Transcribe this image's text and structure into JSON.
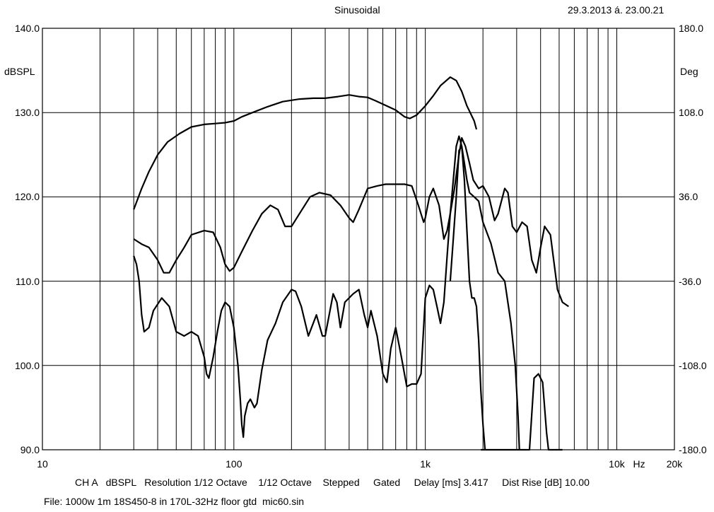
{
  "header": {
    "title": "Sinusoidal",
    "timestamp": "29.3.2013 á. 23.00.21"
  },
  "footer": {
    "settings": "CH A   dBSPL   Resolution 1/12 Octave    1/12 Octave    Stepped     Gated     Delay [ms] 3.417     Dist Rise [dB] 10.00",
    "file": "File: 1000w 1m 18S450-8 in 170L-32Hz floor gtd  mic60.sin"
  },
  "chart_data": {
    "type": "line",
    "title": "Sinusoidal",
    "xlabel": "Hz",
    "ylabel": "dBSPL",
    "y2label": "Deg",
    "xscale": "log",
    "xlim": [
      10,
      20000
    ],
    "ylim": [
      90,
      140
    ],
    "y2lim": [
      -180,
      180
    ],
    "grid": true,
    "x_ticks": [
      {
        "value": 10,
        "label": "10"
      },
      {
        "value": 100,
        "label": "100"
      },
      {
        "value": 1000,
        "label": "1k"
      },
      {
        "value": 10000,
        "label": "10k"
      },
      {
        "value": 20000,
        "label": "20k"
      }
    ],
    "x_unit": "Hz",
    "y_ticks": [
      "90.0",
      "100.0",
      "110.0",
      "120.0",
      "130.0",
      "140.0"
    ],
    "y2_ticks": [
      "-180.0",
      "-108.0",
      "-36.0",
      "36.0",
      "108.0",
      "180.0"
    ],
    "series": [
      {
        "values": [
          [
            30,
            118.5
          ],
          [
            33,
            121
          ],
          [
            36,
            123
          ],
          [
            40,
            125
          ],
          [
            45,
            126.5
          ],
          [
            52,
            127.5
          ],
          [
            60,
            128.3
          ],
          [
            70,
            128.6
          ],
          [
            80,
            128.7
          ],
          [
            90,
            128.8
          ],
          [
            100,
            129
          ],
          [
            110,
            129.5
          ],
          [
            125,
            130
          ],
          [
            150,
            130.7
          ],
          [
            180,
            131.3
          ],
          [
            220,
            131.6
          ],
          [
            260,
            131.7
          ],
          [
            300,
            131.7
          ],
          [
            350,
            131.9
          ],
          [
            400,
            132.1
          ],
          [
            450,
            131.9
          ],
          [
            500,
            131.8
          ],
          [
            550,
            131.4
          ],
          [
            600,
            131
          ],
          [
            700,
            130.3
          ],
          [
            780,
            129.5
          ],
          [
            830,
            129.3
          ],
          [
            900,
            129.7
          ],
          [
            1000,
            130.8
          ],
          [
            1100,
            132
          ],
          [
            1200,
            133.2
          ],
          [
            1350,
            134.2
          ],
          [
            1450,
            133.8
          ],
          [
            1550,
            132.5
          ],
          [
            1650,
            130.8
          ],
          [
            1800,
            129
          ],
          [
            1850,
            128
          ]
        ]
      },
      {
        "values": [
          [
            30,
            115
          ],
          [
            33,
            114.4
          ],
          [
            36,
            114
          ],
          [
            40,
            112.5
          ],
          [
            43,
            111
          ],
          [
            46,
            111
          ],
          [
            50,
            112.5
          ],
          [
            55,
            114
          ],
          [
            60,
            115.5
          ],
          [
            70,
            116
          ],
          [
            78,
            115.8
          ],
          [
            85,
            114
          ],
          [
            90,
            112
          ],
          [
            95,
            111.2
          ],
          [
            100,
            111.6
          ],
          [
            110,
            113.5
          ],
          [
            125,
            116
          ],
          [
            140,
            118
          ],
          [
            155,
            119
          ],
          [
            170,
            118.5
          ],
          [
            185,
            116.5
          ],
          [
            200,
            116.5
          ],
          [
            220,
            118
          ],
          [
            250,
            120
          ],
          [
            280,
            120.5
          ],
          [
            320,
            120.2
          ],
          [
            360,
            119
          ],
          [
            400,
            117.5
          ],
          [
            420,
            117
          ],
          [
            450,
            118.5
          ],
          [
            500,
            121
          ],
          [
            560,
            121.3
          ],
          [
            620,
            121.5
          ],
          [
            700,
            121.5
          ],
          [
            780,
            121.5
          ],
          [
            850,
            121.3
          ],
          [
            920,
            119
          ],
          [
            980,
            117
          ],
          [
            1000,
            117.5
          ],
          [
            1050,
            120
          ],
          [
            1100,
            121
          ],
          [
            1180,
            119
          ],
          [
            1250,
            115
          ],
          [
            1300,
            116
          ],
          [
            1350,
            118
          ],
          [
            1420,
            121
          ],
          [
            1500,
            125
          ],
          [
            1550,
            127
          ],
          [
            1620,
            126
          ],
          [
            1700,
            124
          ],
          [
            1780,
            122
          ],
          [
            1900,
            121
          ],
          [
            2000,
            121.3
          ],
          [
            2150,
            120
          ],
          [
            2300,
            117.2
          ],
          [
            2400,
            118
          ],
          [
            2600,
            121
          ],
          [
            2700,
            120.5
          ],
          [
            2850,
            116.5
          ],
          [
            3000,
            115.8
          ],
          [
            3200,
            117
          ],
          [
            3400,
            116.5
          ],
          [
            3600,
            112.5
          ],
          [
            3800,
            111
          ],
          [
            4000,
            114
          ],
          [
            4200,
            116.5
          ],
          [
            4500,
            115.5
          ],
          [
            4900,
            109
          ],
          [
            5200,
            107.5
          ],
          [
            5600,
            107
          ]
        ]
      },
      {
        "values": [
          [
            30,
            113
          ],
          [
            31,
            112
          ],
          [
            32,
            110
          ],
          [
            33,
            106
          ],
          [
            34,
            104
          ],
          [
            36,
            104.5
          ],
          [
            38,
            106.5
          ],
          [
            42,
            108
          ],
          [
            46,
            107
          ],
          [
            50,
            104
          ],
          [
            55,
            103.5
          ],
          [
            60,
            104
          ],
          [
            65,
            103.5
          ],
          [
            70,
            101
          ],
          [
            72,
            99
          ],
          [
            74,
            98.5
          ],
          [
            78,
            101
          ],
          [
            82,
            104
          ],
          [
            86,
            106.5
          ],
          [
            90,
            107.5
          ],
          [
            95,
            107
          ],
          [
            100,
            104.5
          ],
          [
            105,
            100
          ],
          [
            108,
            96
          ],
          [
            110,
            93
          ],
          [
            112,
            91.5
          ],
          [
            114,
            94
          ],
          [
            118,
            95.5
          ],
          [
            122,
            96
          ],
          [
            128,
            95
          ],
          [
            132,
            95.5
          ],
          [
            140,
            99.5
          ],
          [
            150,
            103
          ],
          [
            165,
            105
          ],
          [
            180,
            107.5
          ],
          [
            200,
            109
          ],
          [
            210,
            108.8
          ],
          [
            225,
            107
          ],
          [
            245,
            103.5
          ],
          [
            270,
            106
          ],
          [
            290,
            103.5
          ],
          [
            300,
            103.5
          ],
          [
            330,
            108.5
          ],
          [
            345,
            107.5
          ],
          [
            360,
            104.5
          ],
          [
            380,
            107.5
          ],
          [
            420,
            108.5
          ],
          [
            450,
            109
          ],
          [
            480,
            106
          ],
          [
            500,
            104.5
          ],
          [
            520,
            106.5
          ],
          [
            560,
            103.5
          ],
          [
            600,
            99
          ],
          [
            630,
            98
          ],
          [
            660,
            102
          ],
          [
            700,
            104.5
          ],
          [
            750,
            101
          ],
          [
            800,
            97.5
          ],
          [
            850,
            97.8
          ],
          [
            900,
            97.8
          ],
          [
            950,
            99
          ],
          [
            1000,
            108
          ],
          [
            1050,
            109.5
          ],
          [
            1100,
            109
          ],
          [
            1150,
            107
          ],
          [
            1200,
            105
          ],
          [
            1250,
            107.5
          ],
          [
            1300,
            113
          ],
          [
            1350,
            118
          ],
          [
            1400,
            122
          ],
          [
            1450,
            126
          ],
          [
            1500,
            127.2
          ],
          [
            1550,
            126
          ],
          [
            1600,
            122
          ],
          [
            1650,
            116
          ],
          [
            1700,
            110
          ],
          [
            1750,
            108
          ],
          [
            1800,
            108
          ],
          [
            1850,
            107
          ],
          [
            1900,
            103
          ],
          [
            1950,
            97
          ],
          [
            2000,
            93
          ],
          [
            2050,
            90
          ]
        ]
      },
      {
        "values": [
          [
            1350,
            110
          ],
          [
            1400,
            115
          ],
          [
            1450,
            120
          ],
          [
            1500,
            125.5
          ],
          [
            1550,
            126
          ],
          [
            1600,
            124
          ],
          [
            1650,
            122
          ],
          [
            1700,
            120.5
          ],
          [
            1800,
            120
          ],
          [
            1900,
            119.5
          ],
          [
            2000,
            117
          ],
          [
            2200,
            114.5
          ],
          [
            2400,
            111
          ],
          [
            2600,
            110
          ],
          [
            2800,
            105
          ],
          [
            2950,
            100
          ],
          [
            3050,
            94
          ],
          [
            3100,
            90
          ]
        ]
      },
      {
        "values": [
          [
            1950,
            90
          ],
          [
            2500,
            90
          ],
          [
            3100,
            90
          ],
          [
            3300,
            90
          ],
          [
            3500,
            90
          ],
          [
            3700,
            98.5
          ],
          [
            3900,
            99
          ],
          [
            4100,
            98
          ],
          [
            4300,
            92
          ],
          [
            4400,
            90
          ],
          [
            4800,
            90
          ],
          [
            5200,
            90
          ]
        ]
      }
    ]
  }
}
